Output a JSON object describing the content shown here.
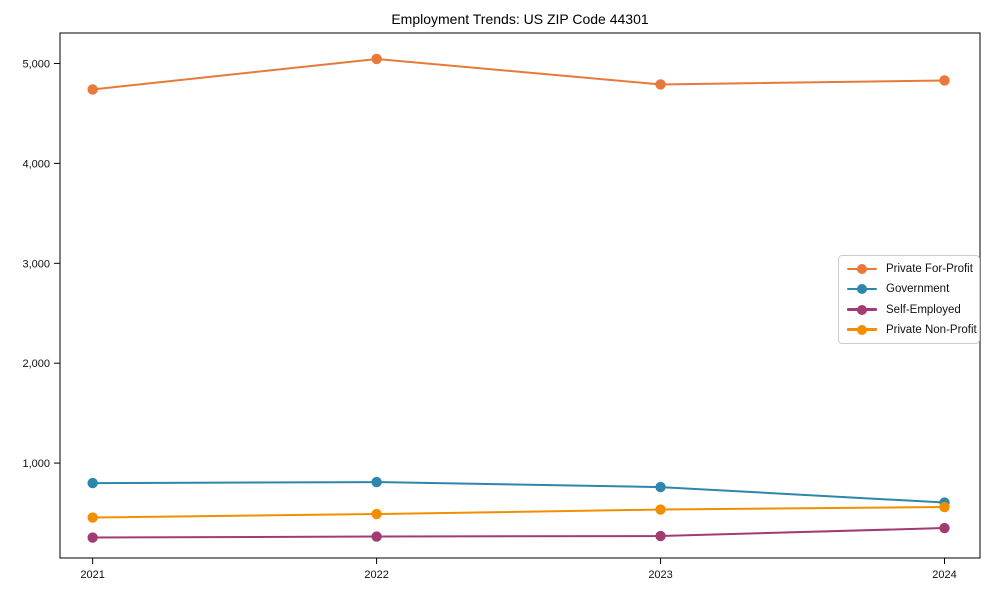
{
  "chart_data": {
    "type": "line",
    "title": "Employment Trends: US ZIP Code 44301",
    "x": [
      2021,
      2022,
      2023,
      2024
    ],
    "x_tick_labels": [
      "2021",
      "2022",
      "2023",
      "2024"
    ],
    "y_ticks": [
      1000,
      2000,
      3000,
      4000,
      5000
    ],
    "y_tick_labels": [
      "1,000",
      "2,000",
      "3,000",
      "4,000",
      "5,000"
    ],
    "xlim": [
      2020.885,
      2024.125
    ],
    "ylim": [
      50,
      5305
    ],
    "grid": false,
    "legend_position": "center-right",
    "marker": "circle",
    "series": [
      {
        "name": "Private For-Profit",
        "color": "#E8793A",
        "values": [
          4740,
          5045,
          4790,
          4830
        ]
      },
      {
        "name": "Government",
        "color": "#2E86AB",
        "values": [
          800,
          810,
          760,
          605
        ]
      },
      {
        "name": "Self-Employed",
        "color": "#A23B72",
        "values": [
          255,
          265,
          270,
          350
        ]
      },
      {
        "name": "Private Non-Profit",
        "color": "#F18F01",
        "values": [
          455,
          490,
          535,
          560
        ]
      }
    ]
  }
}
